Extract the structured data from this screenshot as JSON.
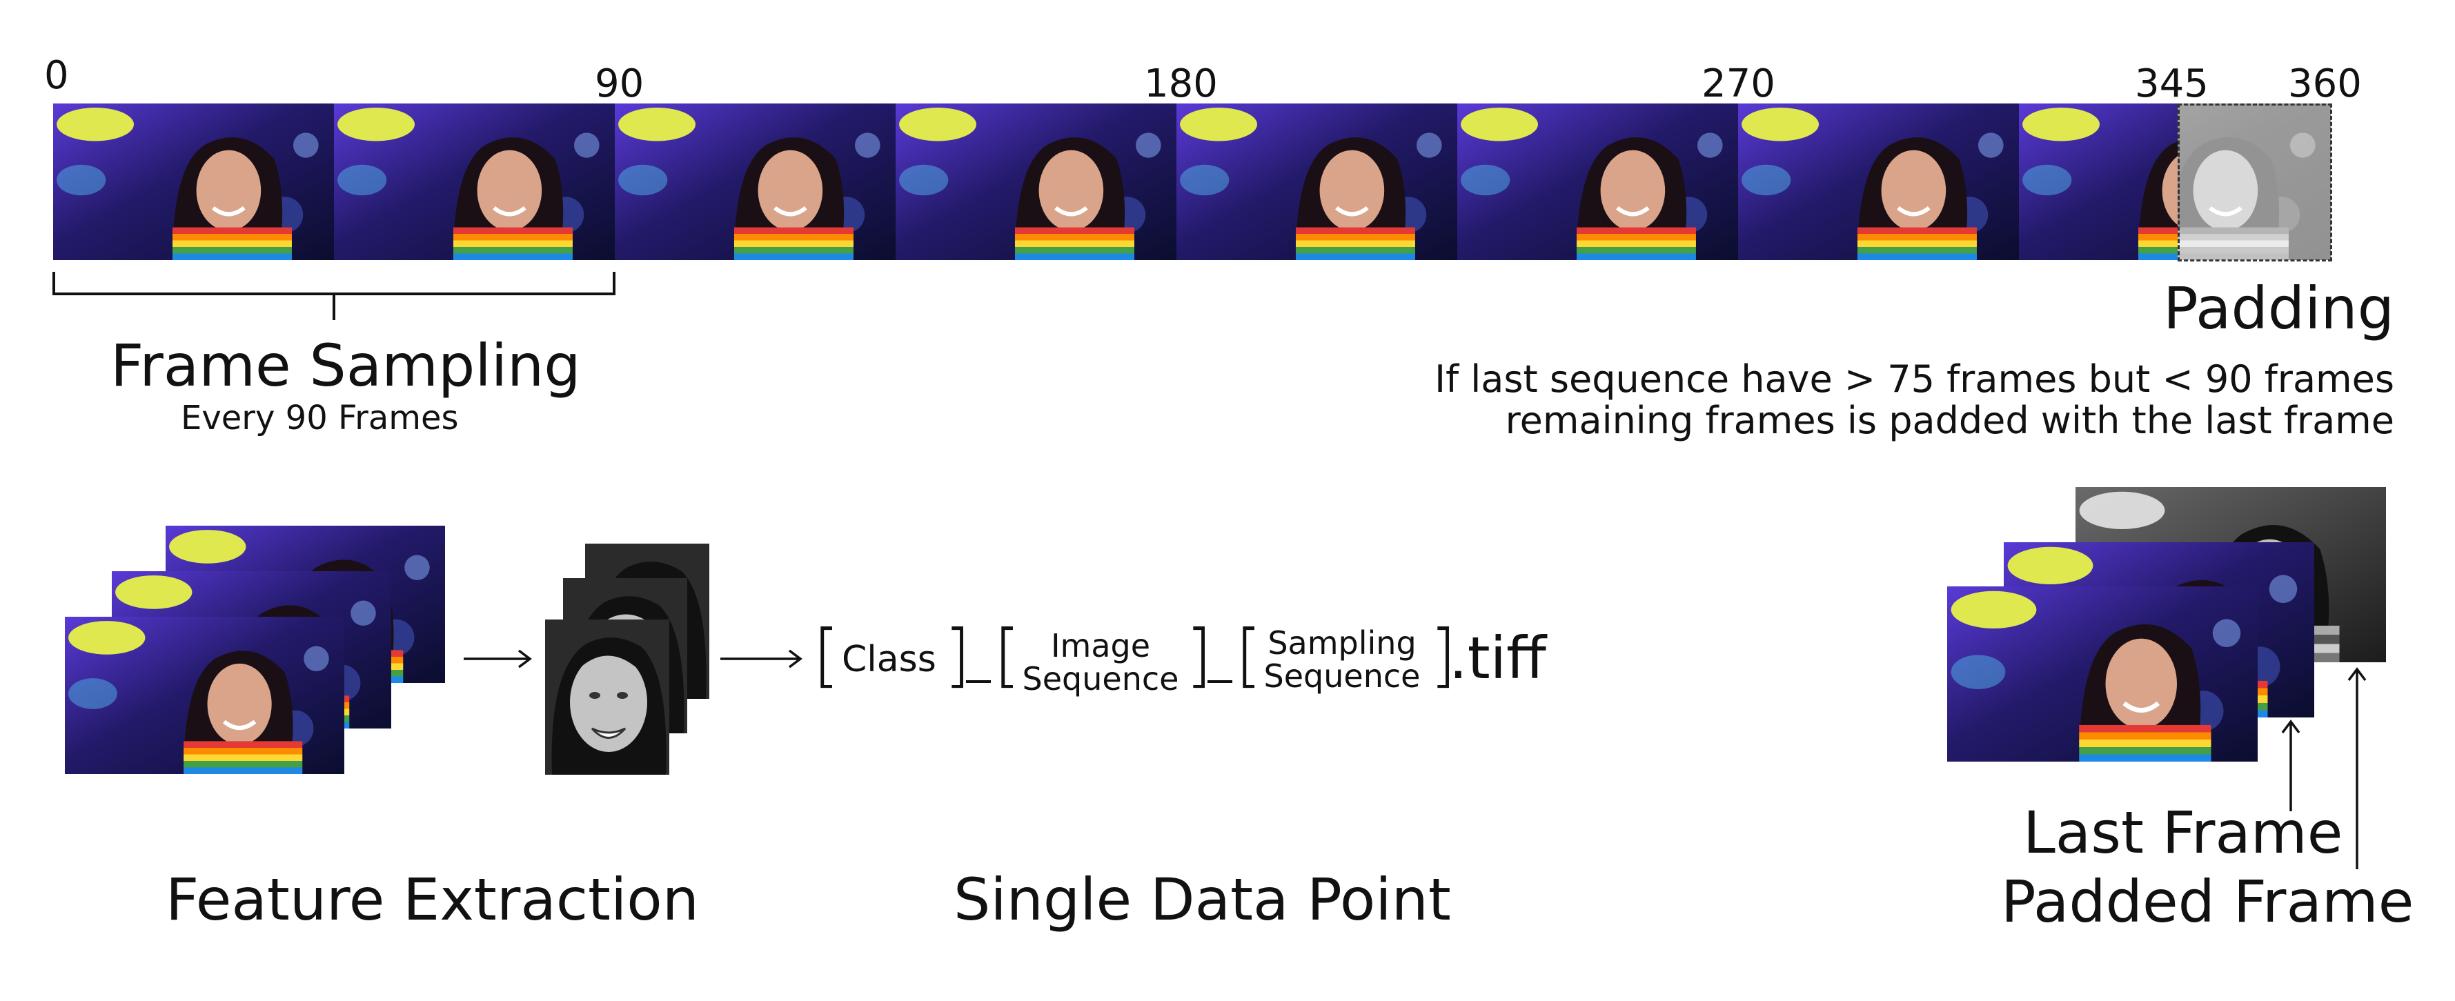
{
  "timeline": {
    "ticks": [
      "0",
      "90",
      "180",
      "270",
      "345",
      "360"
    ]
  },
  "frame_sampling": {
    "title": "Frame Sampling",
    "subtitle": "Every 90 Frames"
  },
  "padding": {
    "title": "Padding",
    "note_line1": "If last sequence have > 75 frames but < 90 frames",
    "note_line2": "remaining frames is padded with the last frame"
  },
  "feature_extraction": {
    "title": "Feature Extraction"
  },
  "data_point": {
    "title": "Single Data Point",
    "class_label": "Class",
    "image_seq_line1": "Image",
    "image_seq_line2": "Sequence",
    "sampling_seq_line1": "Sampling",
    "sampling_seq_line2": "Sequence",
    "extension": ".tiff"
  },
  "padding_stack": {
    "last_frame_label": "Last Frame",
    "padded_frame_label": "Padded Frame"
  }
}
